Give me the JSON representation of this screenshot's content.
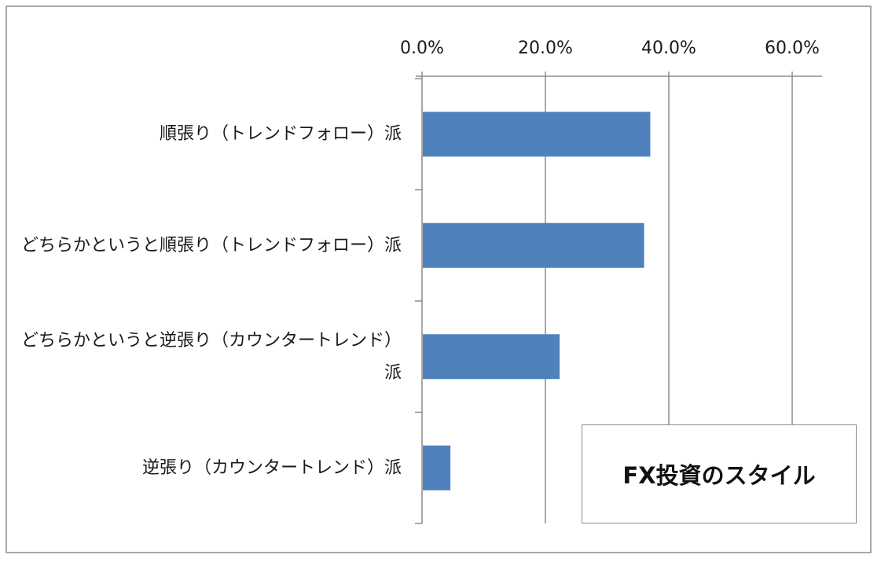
{
  "chart_data": {
    "type": "bar",
    "orientation": "horizontal",
    "title": "FX投資のスタイル",
    "categories": [
      "順張り（トレンドフォロー）派",
      "どちらかというと順張り（トレンドフォロー）派",
      "どちらかというと逆張り（カウンタートレンド）派",
      "逆張り（カウンタートレンド）派"
    ],
    "values": [
      37.0,
      36.0,
      22.3,
      4.6
    ],
    "x_ticks": [
      "0.0%",
      "20.0%",
      "40.0%",
      "60.0%"
    ],
    "xlim": [
      0,
      65
    ],
    "xaxis_position": "top",
    "grid": true,
    "legend": "none",
    "bar_color": "#4f81bd"
  }
}
